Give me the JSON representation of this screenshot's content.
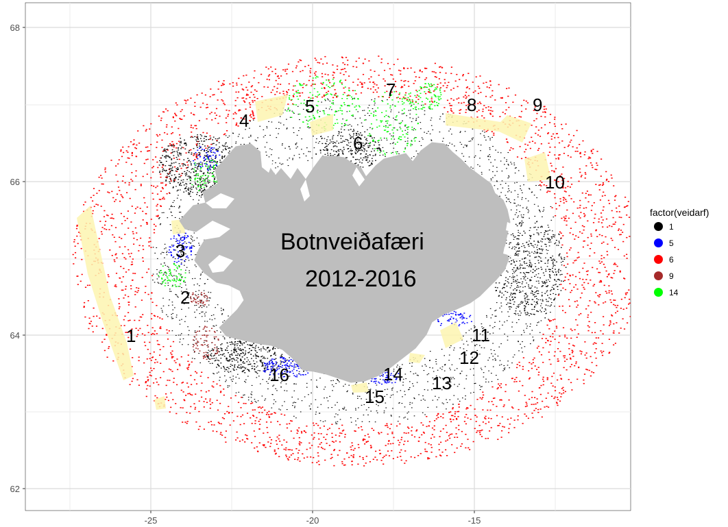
{
  "map": {
    "title_line1": "Botnveiðafæri",
    "title_line2": "2012-2016",
    "x_ticks": [
      "-25",
      "-20",
      "-15"
    ],
    "y_ticks": [
      "68",
      "66",
      "64",
      "62"
    ],
    "area_labels": [
      "1",
      "2",
      "3",
      "4",
      "5",
      "6",
      "7",
      "8",
      "9",
      "10",
      "11",
      "12",
      "13",
      "14",
      "15",
      "16"
    ]
  },
  "legend": {
    "title": "factor(veidarf)",
    "items": [
      {
        "label": "1",
        "color": "#000000"
      },
      {
        "label": "5",
        "color": "#0000ff"
      },
      {
        "label": "6",
        "color": "#ff0000"
      },
      {
        "label": "9",
        "color": "#a52a2a"
      },
      {
        "label": "14",
        "color": "#00ff00"
      }
    ]
  },
  "colors": {
    "panel": "#ffffff",
    "grid": "#ebebeb",
    "land": "#bebebe",
    "area_fill": "#fdf5b0"
  }
}
